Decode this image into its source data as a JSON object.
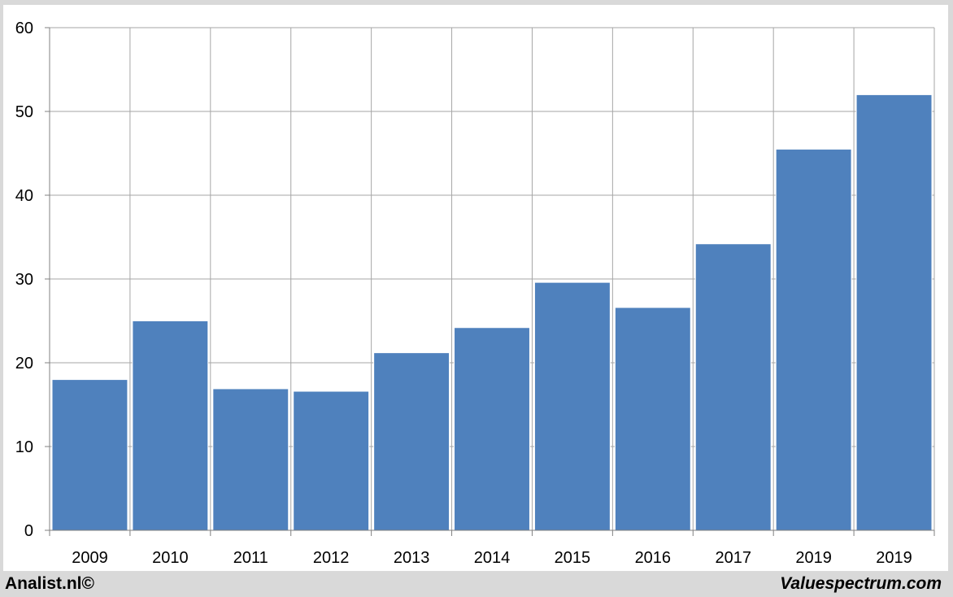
{
  "chart_data": {
    "type": "bar",
    "title": "",
    "xlabel": "",
    "ylabel": "",
    "categories": [
      "2009",
      "2010",
      "2011",
      "2012",
      "2013",
      "2014",
      "2015",
      "2016",
      "2017",
      "2019",
      "2019"
    ],
    "values": [
      18.0,
      25.0,
      16.9,
      16.6,
      21.2,
      24.2,
      29.6,
      26.6,
      34.2,
      45.5,
      52.0
    ],
    "ylim": [
      0,
      60
    ],
    "yticks": [
      0,
      10,
      20,
      30,
      40,
      50,
      60
    ],
    "grid": true,
    "legend": "none",
    "bar_color": "#4f81bd",
    "grid_color": "#a6a6a6"
  },
  "footer": {
    "left": "Analist.nl©",
    "right": "Valuespectrum.com"
  }
}
